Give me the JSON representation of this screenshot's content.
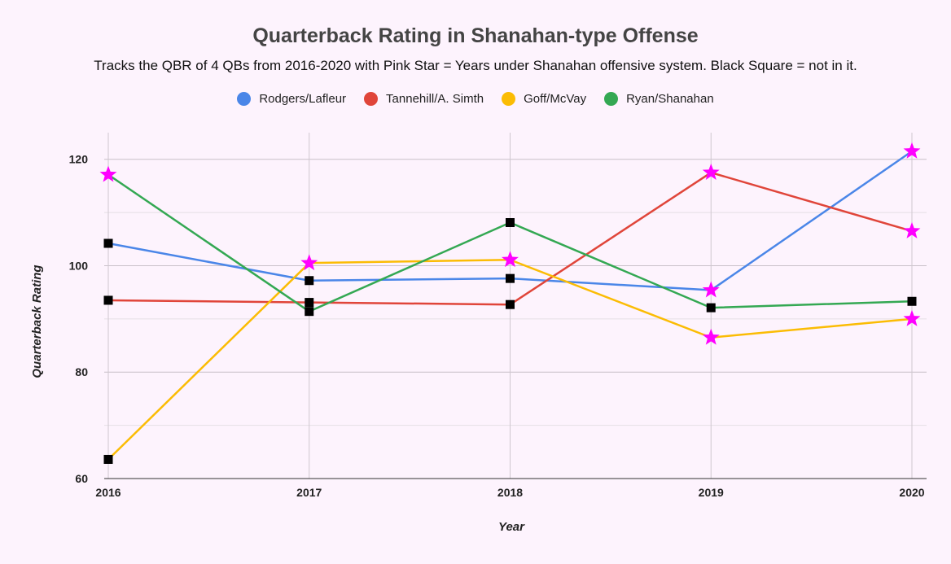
{
  "chart_data": {
    "type": "line",
    "title": "Quarterback Rating in Shanahan-type Offense",
    "subtitle": "Tracks the QBR of 4 QBs from 2016-2020 with Pink Star = Years under Shanahan offensive system. Black Square = not in it.",
    "xlabel": "Year",
    "ylabel": "Quarterback Rating",
    "categories": [
      "2016",
      "2017",
      "2018",
      "2019",
      "2020"
    ],
    "ylim": [
      60,
      125
    ],
    "yticks": [
      60,
      80,
      100,
      120
    ],
    "grid": true,
    "legend": "top-center",
    "marker_legend": {
      "star": "Years under Shanahan offensive system",
      "square": "not in it"
    },
    "series": [
      {
        "name": "Rodgers/Lafleur",
        "color": "#4a86e8",
        "values": [
          104.2,
          97.2,
          97.6,
          95.4,
          121.5
        ],
        "markers": [
          "square",
          "square",
          "square",
          "star",
          "star"
        ]
      },
      {
        "name": "Tannehill/A. Simth",
        "color": "#e0453a",
        "values": [
          93.5,
          93.1,
          92.7,
          117.5,
          106.5
        ],
        "markers": [
          "square",
          "square",
          "square",
          "star",
          "star"
        ]
      },
      {
        "name": "Goff/McVay",
        "color": "#fbbc04",
        "values": [
          63.6,
          100.5,
          101.1,
          86.5,
          90.0
        ],
        "markers": [
          "square",
          "star",
          "star",
          "star",
          "star"
        ]
      },
      {
        "name": "Ryan/Shanahan",
        "color": "#34a853",
        "values": [
          117.1,
          91.4,
          108.1,
          92.1,
          93.3
        ],
        "markers": [
          "star",
          "square",
          "square",
          "square",
          "square"
        ]
      }
    ]
  }
}
